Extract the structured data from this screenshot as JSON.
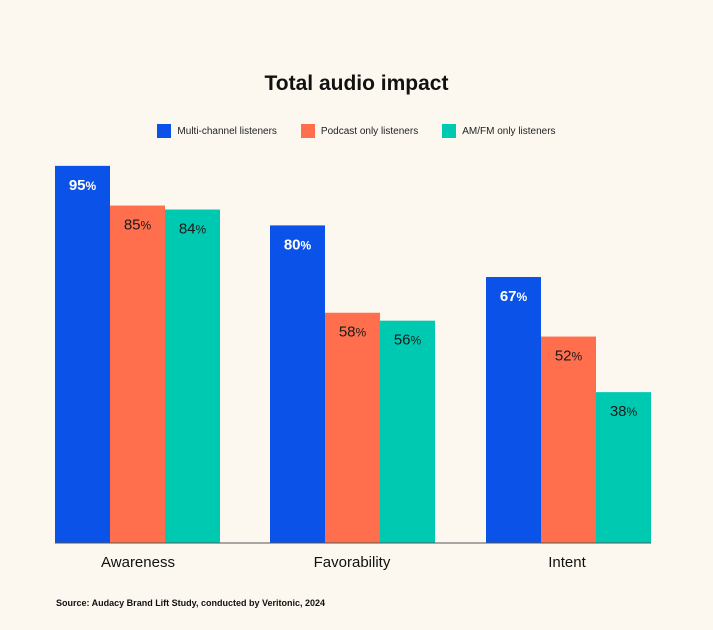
{
  "chart_data": {
    "type": "bar",
    "title": "Total audio impact",
    "categories": [
      "Awareness",
      "Favorability",
      "Intent"
    ],
    "series": [
      {
        "name": "Multi-channel listeners",
        "values": [
          95,
          80,
          67
        ],
        "color": "#0a52e8",
        "label_color": "#ffffff",
        "label_bold": true
      },
      {
        "name": "Podcast only listeners",
        "values": [
          85,
          58,
          52
        ],
        "color": "#ff6f4d",
        "label_color": "#1a1a1a",
        "label_bold": false
      },
      {
        "name": "AM/FM only listeners",
        "values": [
          84,
          56,
          38
        ],
        "color": "#00c9b1",
        "label_color": "#1a1a1a",
        "label_bold": false
      }
    ],
    "value_suffix": "%",
    "ylim": [
      0,
      100
    ],
    "grid": false,
    "legend_position": "top-center",
    "source": "Source:  Audacy Brand Lift Study, conducted by Veritonic, 2024"
  }
}
